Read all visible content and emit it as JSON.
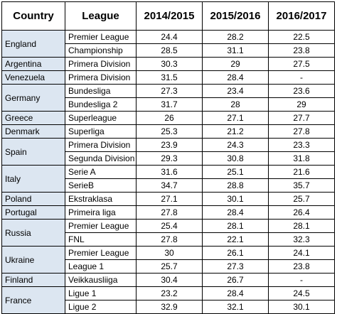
{
  "headers": [
    "Country",
    "League",
    "2014/2015",
    "2015/2016",
    "2016/2017"
  ],
  "groups": [
    {
      "country": "England",
      "rows": [
        {
          "league": "Premier League",
          "v": [
            "24.4",
            "28.2",
            "22.5"
          ]
        },
        {
          "league": "Championship",
          "v": [
            "28.5",
            "31.1",
            "23.8"
          ]
        }
      ]
    },
    {
      "country": "Argentina",
      "rows": [
        {
          "league": "Primera Division",
          "v": [
            "30.3",
            "29",
            "27.5"
          ]
        }
      ]
    },
    {
      "country": "Venezuela",
      "rows": [
        {
          "league": "Primera Division",
          "v": [
            "31.5",
            "28.4",
            "-"
          ]
        }
      ]
    },
    {
      "country": "Germany",
      "rows": [
        {
          "league": "Bundesliga",
          "v": [
            "27.3",
            "23.4",
            "23.6"
          ]
        },
        {
          "league": "Bundesliga 2",
          "v": [
            "31.7",
            "28",
            "29"
          ]
        }
      ]
    },
    {
      "country": "Greece",
      "rows": [
        {
          "league": "Superleague",
          "v": [
            "26",
            "27.1",
            "27.7"
          ]
        }
      ]
    },
    {
      "country": "Denmark",
      "rows": [
        {
          "league": "Superliga",
          "v": [
            "25.3",
            "21.2",
            "27.8"
          ]
        }
      ]
    },
    {
      "country": "Spain",
      "rows": [
        {
          "league": "Primera Division",
          "v": [
            "23.9",
            "24.3",
            "23.3"
          ]
        },
        {
          "league": "Segunda Division",
          "v": [
            "29.3",
            "30.8",
            "31.8"
          ]
        }
      ]
    },
    {
      "country": "Italy",
      "rows": [
        {
          "league": "Serie A",
          "v": [
            "31.6",
            "25.1",
            "21.6"
          ]
        },
        {
          "league": "SerieB",
          "v": [
            "34.7",
            "28.8",
            "35.7"
          ]
        }
      ]
    },
    {
      "country": "Poland",
      "rows": [
        {
          "league": "Ekstraklasa",
          "v": [
            "27.1",
            "30.1",
            "25.7"
          ]
        }
      ]
    },
    {
      "country": "Portugal",
      "rows": [
        {
          "league": "Primeira liga",
          "v": [
            "27.8",
            "28.4",
            "26.4"
          ]
        }
      ]
    },
    {
      "country": "Russia",
      "rows": [
        {
          "league": "Premier League",
          "v": [
            "25.4",
            "28.1",
            "28.1"
          ]
        },
        {
          "league": "FNL",
          "v": [
            "27.8",
            "22.1",
            "32.3"
          ]
        }
      ]
    },
    {
      "country": "Ukraine",
      "rows": [
        {
          "league": "Premier League",
          "v": [
            "30",
            "26.1",
            "24.1"
          ]
        },
        {
          "league": "League 1",
          "v": [
            "25.7",
            "27.3",
            "23.8"
          ]
        }
      ]
    },
    {
      "country": "Finland",
      "rows": [
        {
          "league": "Veikkausliiga",
          "v": [
            "30.4",
            "26.7",
            "-"
          ]
        }
      ]
    },
    {
      "country": "France",
      "rows": [
        {
          "league": "Ligue 1",
          "v": [
            "23.2",
            "28.4",
            "24.5"
          ]
        },
        {
          "league": "Ligue 2",
          "v": [
            "32.9",
            "32.1",
            "30.1"
          ]
        }
      ]
    }
  ]
}
